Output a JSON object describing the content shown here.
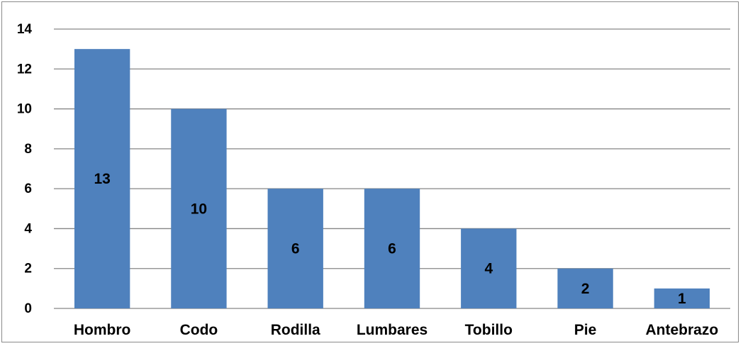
{
  "chart_data": {
    "type": "bar",
    "categories": [
      "Hombro",
      "Codo",
      "Rodilla",
      "Lumbares",
      "Tobillo",
      "Pie",
      "Antebrazo"
    ],
    "values": [
      13,
      10,
      6,
      6,
      4,
      2,
      1
    ],
    "data_labels": [
      "13",
      "10",
      "6",
      "6",
      "4",
      "2",
      "1"
    ],
    "title": "",
    "xlabel": "",
    "ylabel": "",
    "ylim": [
      0,
      14
    ],
    "yticks": [
      0,
      2,
      4,
      6,
      8,
      10,
      12,
      14
    ],
    "ytick_labels": [
      "0",
      "2",
      "4",
      "6",
      "8",
      "10",
      "12",
      "14"
    ],
    "grid": true,
    "legend": "none",
    "colors": {
      "bar": "#4f81bd",
      "grid": "#868686",
      "text": "#000000"
    }
  }
}
